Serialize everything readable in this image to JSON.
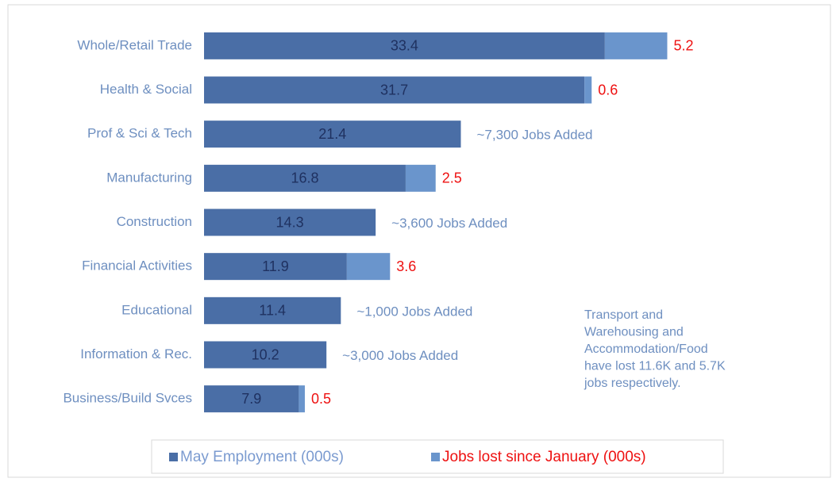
{
  "chart_data": {
    "type": "bar",
    "orientation": "horizontal",
    "stacked": true,
    "categories": [
      "Whole/Retail Trade",
      "Health & Social",
      "Prof & Sci & Tech",
      "Manufacturing",
      "Construction",
      "Financial Activities",
      "Educational",
      "Information & Rec.",
      "Business/Build Svces"
    ],
    "series": [
      {
        "name": "May Employment (000s)",
        "color": "#4a6ea6",
        "label_color": "#1f3160",
        "legend_text_color": "#7b9bd0",
        "values": [
          33.4,
          31.7,
          21.4,
          16.8,
          14.3,
          11.9,
          11.4,
          10.2,
          7.9
        ]
      },
      {
        "name": "Jobs lost since January (000s)",
        "color": "#6a95cc",
        "label_color": "#ee1111",
        "legend_text_color": "#ee1111",
        "values": [
          5.2,
          0.6,
          null,
          2.5,
          null,
          3.6,
          null,
          null,
          0.5
        ]
      }
    ],
    "annotations": [
      null,
      null,
      "~7,300 Jobs Added",
      null,
      "~3,600 Jobs Added",
      null,
      "~1,000 Jobs Added",
      "~3,000 Jobs Added",
      null
    ],
    "annotation_color": "#6e8fc0",
    "note": [
      "Transport and",
      "Warehousing and",
      "Accommodation/Food",
      "have lost 11.6K  and 5.7K",
      "jobs respectively."
    ],
    "xlim": [
      0,
      52
    ],
    "legend": "bottom"
  }
}
